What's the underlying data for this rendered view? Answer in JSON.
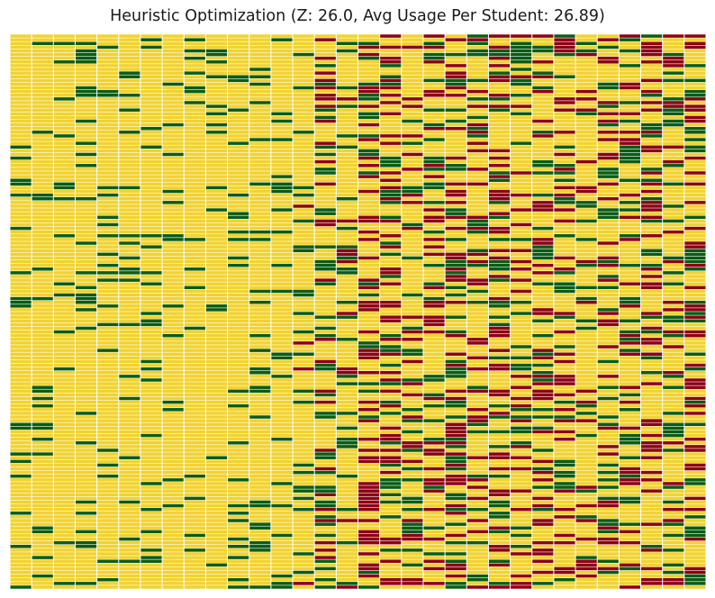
{
  "chart_data": {
    "type": "heatmap",
    "title": "Heuristic Optimization (Z: 26.0, Avg Usage Per Student: 26.89)",
    "xlabel": "",
    "ylabel": "",
    "n_columns": 32,
    "n_rows": 150,
    "grid": true,
    "colors": {
      "yellow": "#f2d22e",
      "green": "#0a5c14",
      "red": "#8c0012",
      "grid": "#ffffff"
    },
    "column_profile": {
      "note_values": "approximate share of cells per column by color, columns left to right",
      "green_share": [
        0.12,
        0.14,
        0.12,
        0.13,
        0.14,
        0.11,
        0.12,
        0.1,
        0.14,
        0.12,
        0.12,
        0.14,
        0.13,
        0.14,
        0.2,
        0.18,
        0.16,
        0.2,
        0.18,
        0.18,
        0.2,
        0.18,
        0.16,
        0.18,
        0.18,
        0.18,
        0.18,
        0.2,
        0.18,
        0.18,
        0.2,
        0.22
      ],
      "red_share": [
        0,
        0,
        0,
        0,
        0,
        0,
        0,
        0,
        0,
        0,
        0,
        0,
        0,
        0.02,
        0.18,
        0.12,
        0.26,
        0.24,
        0.14,
        0.26,
        0.22,
        0.18,
        0.22,
        0.2,
        0.22,
        0.24,
        0.18,
        0.24,
        0.22,
        0.22,
        0.2,
        0.26
      ]
    }
  }
}
